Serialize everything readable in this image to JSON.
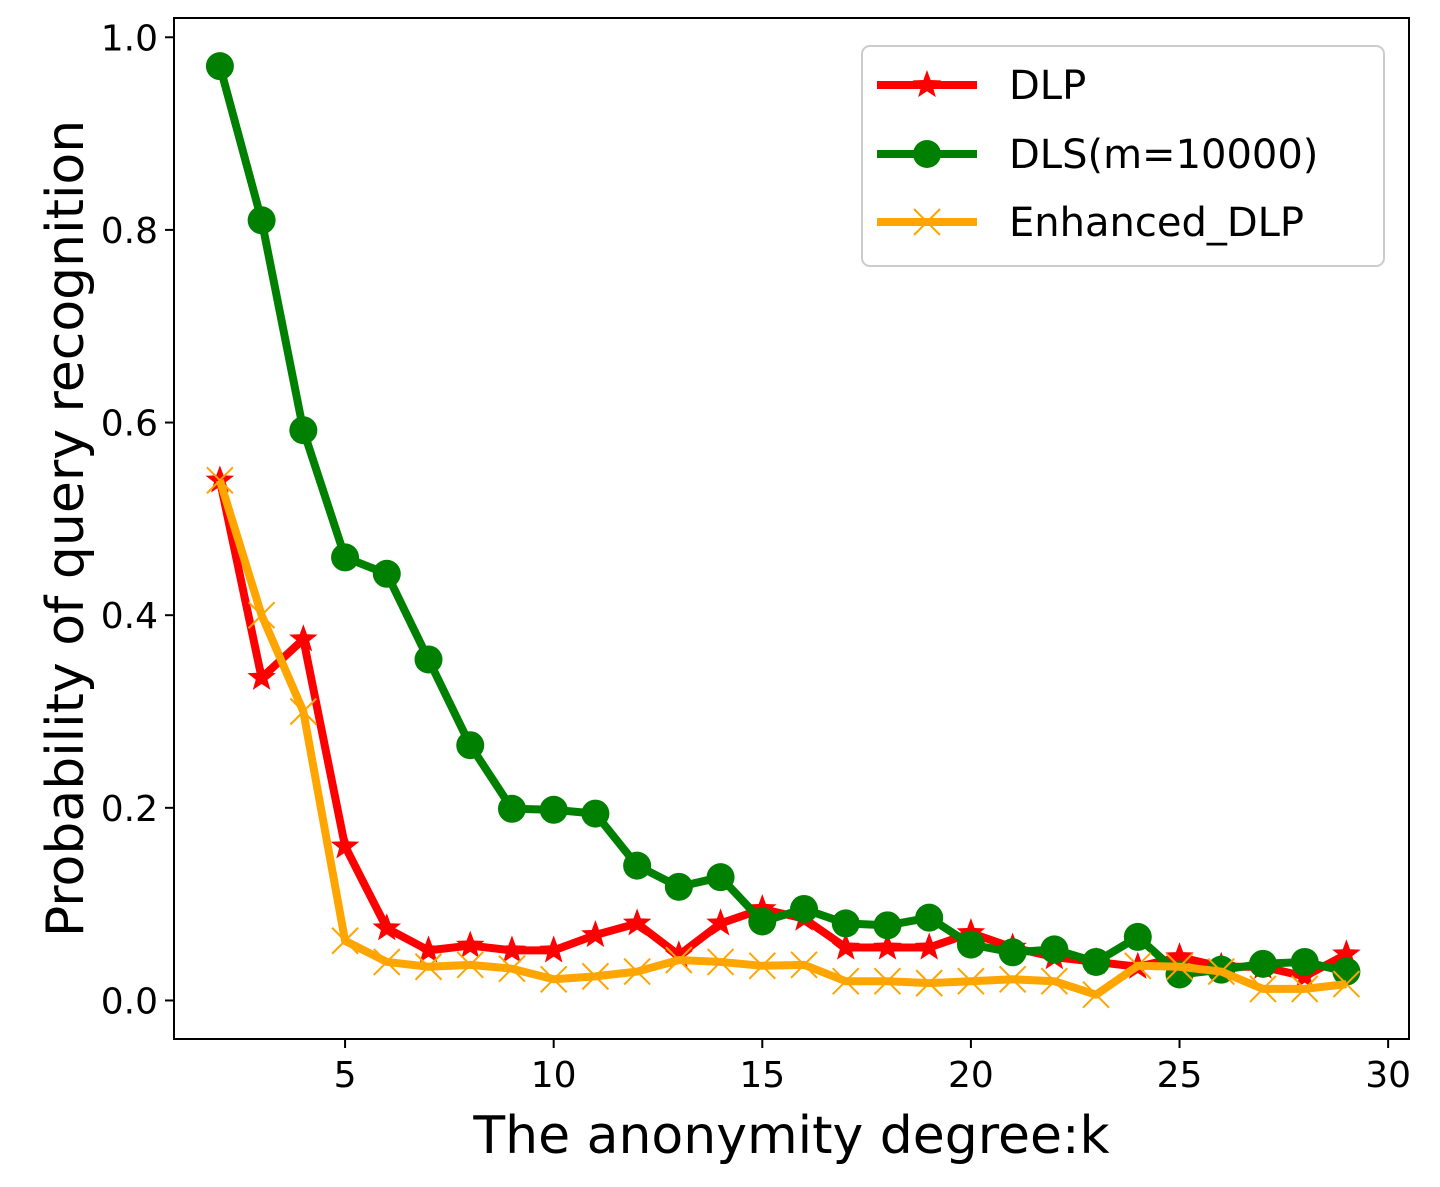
{
  "chart_data": {
    "type": "line",
    "title": "",
    "xlabel": "The anonymity degree:k",
    "ylabel": "Probability of query recognition",
    "xlim": [
      0.9,
      30.5
    ],
    "ylim": [
      -0.04,
      1.02
    ],
    "xticks": [
      5,
      10,
      15,
      20,
      25,
      30
    ],
    "yticks": [
      0.0,
      0.2,
      0.4,
      0.6,
      0.8,
      1.0
    ],
    "xtick_labels": [
      "5",
      "10",
      "15",
      "20",
      "25",
      "30"
    ],
    "ytick_labels": [
      "0.0",
      "0.2",
      "0.4",
      "0.6",
      "0.8",
      "1.0"
    ],
    "grid": false,
    "legend_position": "top-right",
    "x": [
      2,
      3,
      4,
      5,
      6,
      7,
      8,
      9,
      10,
      11,
      12,
      13,
      14,
      15,
      16,
      17,
      18,
      19,
      20,
      21,
      22,
      23,
      24,
      25,
      26,
      27,
      28,
      29
    ],
    "series": [
      {
        "name": "DLP",
        "color": "#ff0000",
        "marker": "star",
        "values": [
          0.54,
          0.335,
          0.375,
          0.16,
          0.075,
          0.052,
          0.057,
          0.052,
          0.052,
          0.068,
          0.08,
          0.047,
          0.08,
          0.095,
          0.085,
          0.055,
          0.055,
          0.055,
          0.07,
          0.055,
          0.045,
          0.04,
          0.035,
          0.045,
          0.035,
          0.035,
          0.025,
          0.048
        ]
      },
      {
        "name": "DLS(m=10000)",
        "color": "#008000",
        "marker": "circle",
        "values": [
          0.97,
          0.81,
          0.592,
          0.46,
          0.443,
          0.354,
          0.265,
          0.199,
          0.198,
          0.194,
          0.14,
          0.118,
          0.128,
          0.082,
          0.095,
          0.08,
          0.078,
          0.086,
          0.058,
          0.05,
          0.053,
          0.04,
          0.066,
          0.027,
          0.032,
          0.038,
          0.04,
          0.03
        ]
      },
      {
        "name": "Enhanced_DLP",
        "color": "#ffa500",
        "marker": "x",
        "values": [
          0.54,
          0.4,
          0.3,
          0.062,
          0.04,
          0.035,
          0.037,
          0.033,
          0.022,
          0.025,
          0.03,
          0.042,
          0.04,
          0.036,
          0.037,
          0.02,
          0.02,
          0.018,
          0.02,
          0.022,
          0.02,
          0.006,
          0.036,
          0.035,
          0.03,
          0.012,
          0.012,
          0.017
        ]
      }
    ]
  }
}
